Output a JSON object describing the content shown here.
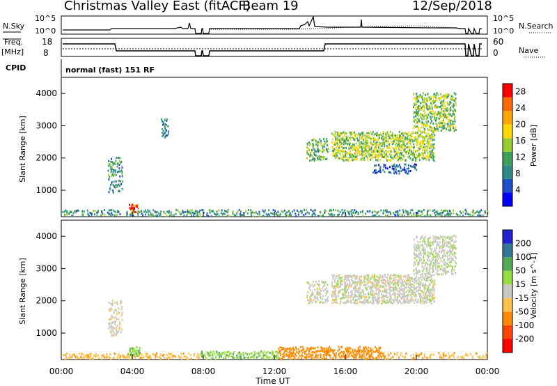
{
  "header": {
    "title": "Christmas Valley East (fitACF)",
    "beam": "Beam 19",
    "date": "12/Sep/2018"
  },
  "strip_labels": {
    "nsky": "N.Sky",
    "nsearch": "N.Search",
    "freq": "Freq.",
    "freq_unit": "[MHz]",
    "nave": "Nave",
    "cpid": "CPID",
    "cpid_value": "normal (fast) 151 RF",
    "nsky_ticks": [
      "10^5",
      "10^0"
    ],
    "nsearch_ticks": [
      "10^5",
      "10^0"
    ],
    "freq_ticks": [
      "18",
      "8"
    ],
    "nave_ticks": [
      "60",
      "0"
    ]
  },
  "colors": {
    "power_scale": [
      "#0000ff",
      "#1e4ec8",
      "#2d8b88",
      "#3f9f5a",
      "#9acd32",
      "#ffd700",
      "#ffa500",
      "#ff6a00",
      "#ff0000"
    ],
    "velocity_scale": [
      "#ff0000",
      "#ff4500",
      "#ff8c00",
      "#ffc04d",
      "#c8c8c0",
      "#99dd44",
      "#55aa55",
      "#337799",
      "#2222cc"
    ]
  },
  "chart_data": [
    {
      "type": "heatmap",
      "name": "power",
      "ylabel": "Slant Range [km]",
      "xlim": [
        "00:00",
        "24:00"
      ],
      "ylim": [
        180,
        4500
      ],
      "yticks": [
        1000,
        2000,
        3000,
        4000
      ],
      "colorbar_label": "Power [dB]",
      "colorbar_ticks": [
        4,
        8,
        12,
        16,
        20,
        24,
        28
      ],
      "color_range": [
        0,
        30
      ],
      "features": [
        {
          "t0": 0.0,
          "t1": 24.0,
          "r0": 180,
          "r1": 380,
          "value": 10,
          "density": 0.55
        },
        {
          "t0": 3.8,
          "t1": 4.3,
          "r0": 300,
          "r1": 560,
          "value": 26,
          "density": 0.9
        },
        {
          "t0": 2.6,
          "t1": 3.4,
          "r0": 900,
          "r1": 2000,
          "value": 9,
          "density": 0.45
        },
        {
          "t0": 5.6,
          "t1": 6.0,
          "r0": 2600,
          "r1": 3200,
          "value": 8,
          "density": 0.5
        },
        {
          "t0": 13.8,
          "t1": 15.0,
          "r0": 1900,
          "r1": 2600,
          "value": 13,
          "density": 0.55
        },
        {
          "t0": 15.2,
          "t1": 21.0,
          "r0": 1900,
          "r1": 2800,
          "value": 15,
          "density": 0.7
        },
        {
          "t0": 17.5,
          "t1": 20.0,
          "r0": 1500,
          "r1": 1800,
          "value": 7,
          "density": 0.45
        },
        {
          "t0": 19.8,
          "t1": 22.2,
          "r0": 2800,
          "r1": 4000,
          "value": 14,
          "density": 0.6
        }
      ]
    },
    {
      "type": "heatmap",
      "name": "velocity",
      "xlabel": "Time UT",
      "ylabel": "Slant Range [km]",
      "xlim": [
        "00:00",
        "24:00"
      ],
      "xticks": [
        "00:00",
        "04:00",
        "08:00",
        "12:00",
        "16:00",
        "20:00",
        "00:00"
      ],
      "ylim": [
        180,
        4500
      ],
      "yticks": [
        1000,
        2000,
        3000,
        4000
      ],
      "colorbar_label": "Velocity [m s^-1]",
      "colorbar_ticks": [
        -200,
        -100,
        -50,
        -15,
        15,
        50,
        100,
        200
      ],
      "features": [
        {
          "t0": 0.0,
          "t1": 7.8,
          "r0": 180,
          "r1": 360,
          "value": -40,
          "density": 0.55
        },
        {
          "t0": 7.8,
          "t1": 12.2,
          "r0": 180,
          "r1": 420,
          "value": 40,
          "density": 0.6
        },
        {
          "t0": 12.2,
          "t1": 18.0,
          "r0": 180,
          "r1": 560,
          "value": -70,
          "density": 0.7
        },
        {
          "t0": 18.0,
          "t1": 24.0,
          "r0": 180,
          "r1": 380,
          "value": -40,
          "density": 0.45
        },
        {
          "t0": 3.8,
          "t1": 4.4,
          "r0": 250,
          "r1": 560,
          "value": 45,
          "density": 0.9
        },
        {
          "t0": 2.6,
          "t1": 3.4,
          "r0": 900,
          "r1": 2000,
          "value": -10,
          "density": 0.4
        },
        {
          "t0": 13.8,
          "t1": 15.0,
          "r0": 1900,
          "r1": 2600,
          "value": 0,
          "density": 0.55
        },
        {
          "t0": 15.2,
          "t1": 21.0,
          "r0": 1900,
          "r1": 2800,
          "value": 0,
          "density": 0.7
        },
        {
          "t0": 19.8,
          "t1": 22.2,
          "r0": 2800,
          "r1": 4000,
          "value": 5,
          "density": 0.6
        }
      ]
    }
  ]
}
